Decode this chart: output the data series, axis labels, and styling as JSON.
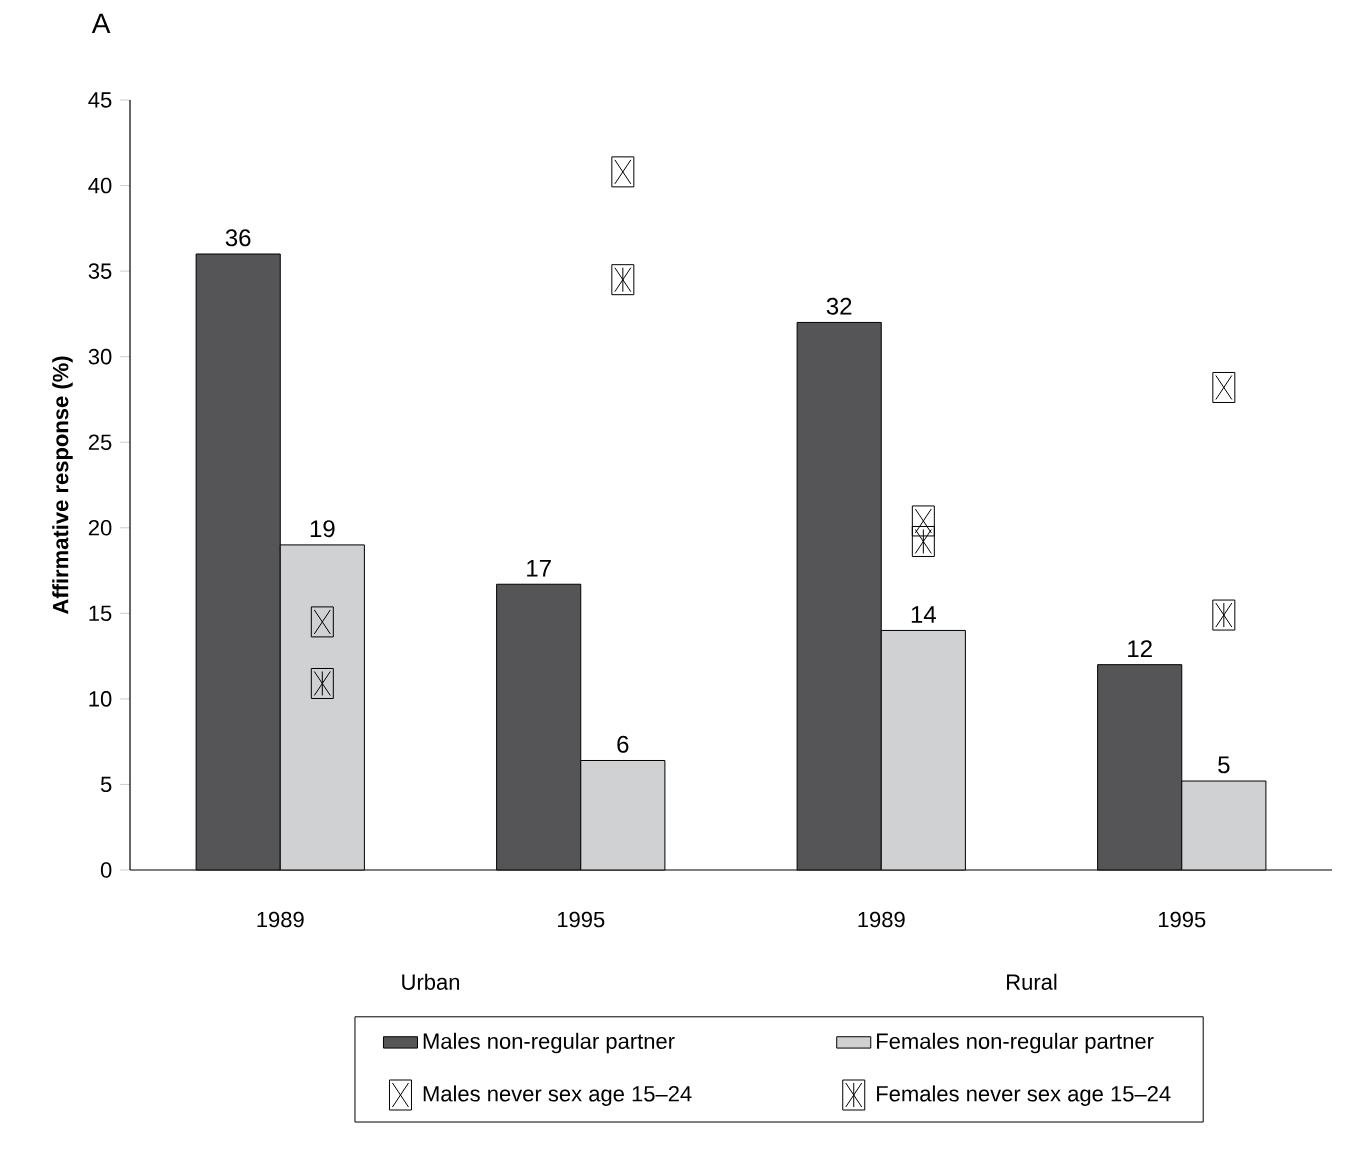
{
  "chart_data": {
    "type": "bar",
    "title": "A",
    "ylabel": "Affirmative response (%)",
    "categories": [
      "1989",
      "1995",
      "1989",
      "1995"
    ],
    "annotations": [
      "Urban",
      "Rural"
    ],
    "ylim": [
      0,
      45
    ],
    "yticks": [
      0,
      5,
      10,
      15,
      20,
      25,
      30,
      35,
      40,
      45
    ],
    "legend": "bottom",
    "grid": false,
    "series": [
      {
        "name": "Males non-regular partner",
        "color": "#555557",
        "values": [
          36,
          16.7,
          32,
          12
        ],
        "value_labels": [
          "36",
          "17",
          "32",
          "12"
        ]
      },
      {
        "name": "Females non-regular partner",
        "color": "#d0d1d3",
        "values": [
          19,
          6.4,
          14,
          5.2
        ],
        "value_labels": [
          "19",
          "6",
          "14",
          "5"
        ]
      },
      {
        "name": "Males never sex age 15–24",
        "type": "scatter",
        "marker": "cross",
        "color": "#000000",
        "values": [
          14.5,
          40.8,
          20.4,
          28.2
        ]
      },
      {
        "name": "Females never sex age 15–24",
        "type": "scatter",
        "color": "#000000",
        "values": [
          10.9,
          34.5,
          19.2,
          14.9
        ]
      }
    ]
  }
}
